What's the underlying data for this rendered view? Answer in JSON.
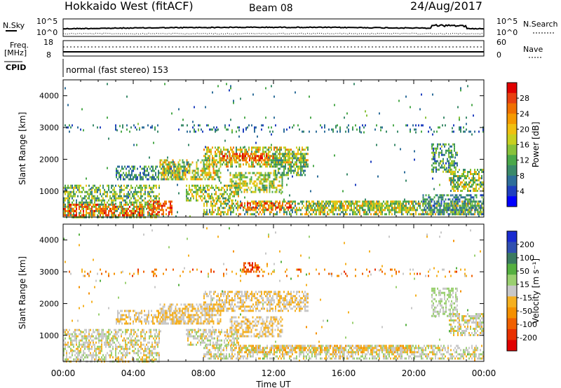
{
  "header": {
    "title": "Hokkaido West (fitACF)",
    "beam": "Beam 08",
    "date": "24/Aug/2017"
  },
  "top_panel": {
    "nsky_label": "N.Sky",
    "nsearch_label": "N.Search",
    "left_top": "10^5",
    "left_bottom": "10^0",
    "right_top": "10^5",
    "right_bottom": "10^0",
    "freq_label": "Freq.",
    "freq_unit": "[MHz]",
    "freq_top": "18",
    "freq_bottom": "8",
    "nave_label": "Nave",
    "nave_top": "60",
    "nave_bottom": "0",
    "cpid_label": "CPID",
    "cpid_text": "normal (fast stereo) 153"
  },
  "chart_data": [
    {
      "type": "heatmap",
      "name": "power",
      "ylabel": "Slant Range [km]",
      "xlabel": "",
      "x_ticks": [
        "00:00",
        "04:00",
        "08:00",
        "12:00",
        "16:00",
        "20:00",
        "00:00"
      ],
      "xlim_hours": [
        0,
        24
      ],
      "ylim_km": [
        180,
        4500
      ],
      "y_ticks": [
        1000,
        2000,
        3000,
        4000
      ],
      "colorbar": {
        "label": "Power [dB]",
        "ticks": [
          "4",
          "8",
          "12",
          "16",
          "20",
          "24",
          "28"
        ],
        "colors": [
          "#0000ff",
          "#1f3fbf",
          "#2e6e9a",
          "#3a8a6a",
          "#4aa84a",
          "#88c23a",
          "#c8d020",
          "#f0c010",
          "#f59a00",
          "#f07000",
          "#e84010",
          "#e00000"
        ]
      },
      "regions": [
        {
          "x": [
            0,
            5.5
          ],
          "y": [
            200,
            1200
          ],
          "level": [
            2,
            7
          ]
        },
        {
          "x": [
            0,
            4.5
          ],
          "y": [
            250,
            600
          ],
          "level": [
            7,
            11
          ]
        },
        {
          "x": [
            4.8,
            6.2
          ],
          "y": [
            250,
            700
          ],
          "level": [
            8,
            11
          ]
        },
        {
          "x": [
            3,
            7
          ],
          "y": [
            1400,
            1800
          ],
          "level": [
            1,
            5
          ]
        },
        {
          "x": [
            5.5,
            9
          ],
          "y": [
            1400,
            2000
          ],
          "level": [
            3,
            9
          ]
        },
        {
          "x": [
            7,
            10
          ],
          "y": [
            700,
            1200
          ],
          "level": [
            3,
            8
          ]
        },
        {
          "x": [
            8,
            14
          ],
          "y": [
            1800,
            2400
          ],
          "level": [
            3,
            9
          ]
        },
        {
          "x": [
            9,
            12
          ],
          "y": [
            2000,
            2200
          ],
          "level": [
            8,
            11
          ]
        },
        {
          "x": [
            9.5,
            12.5
          ],
          "y": [
            1000,
            1600
          ],
          "level": [
            3,
            8
          ]
        },
        {
          "x": [
            12,
            13.8
          ],
          "y": [
            1500,
            2200
          ],
          "level": [
            2,
            7
          ]
        },
        {
          "x": [
            8,
            24
          ],
          "y": [
            300,
            700
          ],
          "level": [
            2,
            9
          ]
        },
        {
          "x": [
            10,
            13
          ],
          "y": [
            400,
            650
          ],
          "level": [
            8,
            11
          ]
        },
        {
          "x": [
            14,
            20
          ],
          "y": [
            400,
            700
          ],
          "level": [
            3,
            8
          ]
        },
        {
          "x": [
            21,
            22.5
          ],
          "y": [
            1600,
            2500
          ],
          "level": [
            1,
            6
          ]
        },
        {
          "x": [
            22,
            24
          ],
          "y": [
            1000,
            1700
          ],
          "level": [
            2,
            8
          ]
        },
        {
          "x": [
            20.5,
            24
          ],
          "y": [
            300,
            900
          ],
          "level": [
            1,
            5
          ]
        },
        {
          "x": [
            0,
            24
          ],
          "y": [
            2900,
            3100
          ],
          "level": [
            1,
            4
          ],
          "sparse": 0.15
        },
        {
          "x": [
            0,
            24
          ],
          "y": [
            200,
            4400
          ],
          "level": [
            1,
            5
          ],
          "sparse": 0.01
        }
      ]
    },
    {
      "type": "heatmap",
      "name": "velocity",
      "ylabel": "Slant Range [km]",
      "xlabel": "Time UT",
      "x_ticks": [
        "00:00",
        "04:00",
        "08:00",
        "12:00",
        "16:00",
        "20:00",
        "00:00"
      ],
      "xlim_hours": [
        0,
        24
      ],
      "ylim_km": [
        180,
        4500
      ],
      "y_ticks": [
        1000,
        2000,
        3000,
        4000
      ],
      "colorbar": {
        "label": "Velocity [m s⁻¹]",
        "ticks": [
          "200",
          "100",
          "50",
          "15",
          "-15",
          "-50",
          "-100",
          "-200"
        ],
        "colors": [
          "#1a2bd0",
          "#3050b0",
          "#3a7a60",
          "#55b040",
          "#9ad070",
          "#c8c8c8",
          "#f5b020",
          "#f59000",
          "#f06000",
          "#e83000",
          "#e00000"
        ]
      },
      "regions": [
        {
          "x": [
            0,
            5.5
          ],
          "y": [
            200,
            1200
          ],
          "level": [
            4,
            6
          ]
        },
        {
          "x": [
            3,
            7
          ],
          "y": [
            1400,
            1800
          ],
          "level": [
            5,
            6
          ]
        },
        {
          "x": [
            5.5,
            9
          ],
          "y": [
            1400,
            2000
          ],
          "level": [
            5,
            6
          ]
        },
        {
          "x": [
            7,
            10
          ],
          "y": [
            700,
            1200
          ],
          "level": [
            4,
            6
          ]
        },
        {
          "x": [
            8,
            14
          ],
          "y": [
            1800,
            2400
          ],
          "level": [
            5,
            6
          ]
        },
        {
          "x": [
            9.5,
            12.5
          ],
          "y": [
            1000,
            1600
          ],
          "level": [
            5,
            6
          ]
        },
        {
          "x": [
            10,
            20
          ],
          "y": [
            450,
            700
          ],
          "level": [
            6,
            7
          ]
        },
        {
          "x": [
            8,
            24
          ],
          "y": [
            300,
            700
          ],
          "level": [
            4,
            6
          ]
        },
        {
          "x": [
            21,
            22.5
          ],
          "y": [
            1600,
            2500
          ],
          "level": [
            4,
            5
          ]
        },
        {
          "x": [
            22,
            24
          ],
          "y": [
            1000,
            1700
          ],
          "level": [
            4,
            6
          ]
        },
        {
          "x": [
            10.2,
            11.2
          ],
          "y": [
            3000,
            3300
          ],
          "level": [
            7,
            10
          ]
        },
        {
          "x": [
            0,
            24
          ],
          "y": [
            2900,
            3100
          ],
          "level": [
            5,
            9
          ],
          "sparse": 0.12
        },
        {
          "x": [
            0,
            24
          ],
          "y": [
            200,
            4400
          ],
          "level": [
            3,
            7
          ],
          "sparse": 0.008
        }
      ]
    }
  ]
}
